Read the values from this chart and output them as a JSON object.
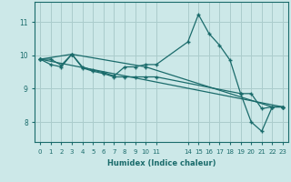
{
  "xlabel": "Humidex (Indice chaleur)",
  "background_color": "#cce8e8",
  "grid_color": "#aacccc",
  "line_color": "#1a6b6b",
  "xlim": [
    -0.5,
    23.5
  ],
  "ylim": [
    7.4,
    11.6
  ],
  "yticks": [
    8,
    9,
    10,
    11
  ],
  "xticks": [
    0,
    1,
    2,
    3,
    4,
    5,
    6,
    7,
    8,
    9,
    10,
    11,
    14,
    15,
    16,
    17,
    18,
    19,
    20,
    21,
    22,
    23
  ],
  "line1_x": [
    0,
    1,
    2,
    3,
    4,
    5,
    6,
    7,
    8,
    9,
    10,
    11,
    14,
    15,
    16,
    17,
    18,
    19,
    20,
    21,
    22,
    23
  ],
  "line1_y": [
    9.88,
    9.88,
    9.7,
    10.03,
    9.65,
    9.55,
    9.48,
    9.38,
    9.65,
    9.65,
    9.72,
    9.72,
    10.4,
    11.22,
    10.65,
    10.3,
    9.85,
    8.85,
    8.85,
    8.4,
    8.45,
    8.45
  ],
  "line2_x": [
    0,
    1,
    2,
    3,
    4,
    5,
    6,
    7,
    8,
    9,
    10,
    11,
    19,
    20,
    21,
    22,
    23
  ],
  "line2_y": [
    9.88,
    9.72,
    9.65,
    10.03,
    9.62,
    9.52,
    9.45,
    9.35,
    9.35,
    9.35,
    9.35,
    9.35,
    8.85,
    8.0,
    7.72,
    8.45,
    8.45
  ],
  "line3_x": [
    0,
    23
  ],
  "line3_y": [
    9.88,
    8.45
  ],
  "line4_x": [
    0,
    3,
    10,
    22,
    23
  ],
  "line4_y": [
    9.88,
    10.03,
    9.65,
    8.45,
    8.45
  ]
}
